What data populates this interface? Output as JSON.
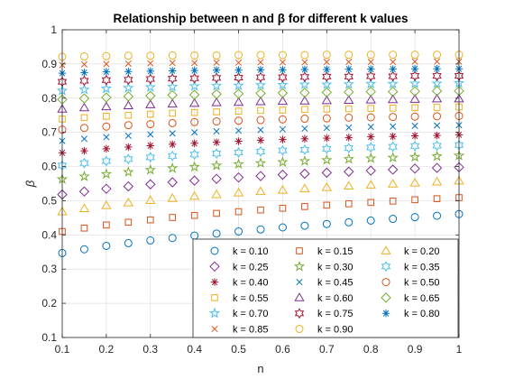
{
  "chart_data": {
    "type": "scatter",
    "title": "Relationship between n and β for different k values",
    "xlabel": "n",
    "ylabel": "β",
    "xlim": [
      0.1,
      1.0
    ],
    "ylim": [
      0.1,
      1.0
    ],
    "xticks": [
      "0.1",
      "0.2",
      "0.3",
      "0.4",
      "0.5",
      "0.6",
      "0.7",
      "0.8",
      "0.9",
      "1"
    ],
    "yticks": [
      "0.1",
      "0.2",
      "0.3",
      "0.4",
      "0.5",
      "0.6",
      "0.7",
      "0.8",
      "0.9",
      "1"
    ],
    "grid": true,
    "legend_location": "bottom-right",
    "legend_columns": 3,
    "x": [
      0.1,
      0.15,
      0.2,
      0.25,
      0.3,
      0.35,
      0.4,
      0.45,
      0.5,
      0.55,
      0.6,
      0.65,
      0.7,
      0.75,
      0.8,
      0.85,
      0.9,
      0.95,
      1.0
    ],
    "series": [
      {
        "name": "k = 0.10",
        "marker": "circle",
        "color": "#0072BD",
        "values": [
          0.347,
          0.358,
          0.368,
          0.376,
          0.384,
          0.391,
          0.398,
          0.404,
          0.41,
          0.416,
          0.422,
          0.427,
          0.432,
          0.437,
          0.442,
          0.447,
          0.452,
          0.456,
          0.461
        ]
      },
      {
        "name": "k = 0.15",
        "marker": "square",
        "color": "#D95319",
        "values": [
          0.41,
          0.42,
          0.429,
          0.437,
          0.444,
          0.451,
          0.457,
          0.463,
          0.468,
          0.473,
          0.478,
          0.483,
          0.487,
          0.491,
          0.495,
          0.499,
          0.503,
          0.506,
          0.509
        ]
      },
      {
        "name": "k = 0.20",
        "marker": "triangle-up",
        "color": "#EDB120",
        "values": [
          0.468,
          0.477,
          0.486,
          0.494,
          0.501,
          0.507,
          0.513,
          0.518,
          0.523,
          0.527,
          0.531,
          0.535,
          0.539,
          0.543,
          0.546,
          0.549,
          0.552,
          0.555,
          0.558
        ]
      },
      {
        "name": "k = 0.25",
        "marker": "diamond",
        "color": "#7E2F8E",
        "values": [
          0.518,
          0.527,
          0.535,
          0.542,
          0.548,
          0.554,
          0.559,
          0.564,
          0.568,
          0.572,
          0.576,
          0.579,
          0.582,
          0.585,
          0.588,
          0.591,
          0.594,
          0.596,
          0.598
        ]
      },
      {
        "name": "k = 0.30",
        "marker": "pentagram",
        "color": "#77AC30",
        "values": [
          0.563,
          0.571,
          0.578,
          0.584,
          0.59,
          0.595,
          0.599,
          0.603,
          0.607,
          0.61,
          0.613,
          0.616,
          0.619,
          0.622,
          0.624,
          0.626,
          0.628,
          0.63,
          0.632
        ]
      },
      {
        "name": "k = 0.35",
        "marker": "hexagram",
        "color": "#4DBEEE",
        "values": [
          0.603,
          0.61,
          0.616,
          0.622,
          0.627,
          0.631,
          0.635,
          0.638,
          0.641,
          0.644,
          0.647,
          0.649,
          0.652,
          0.654,
          0.656,
          0.658,
          0.66,
          0.661,
          0.663
        ]
      },
      {
        "name": "k = 0.40",
        "marker": "asterisk",
        "color": "#A2142F",
        "values": [
          0.64,
          0.646,
          0.652,
          0.657,
          0.661,
          0.665,
          0.668,
          0.671,
          0.674,
          0.677,
          0.679,
          0.681,
          0.683,
          0.685,
          0.687,
          0.688,
          0.69,
          0.691,
          0.693
        ]
      },
      {
        "name": "k = 0.45",
        "marker": "x",
        "color": "#0072BD",
        "values": [
          0.675,
          0.681,
          0.686,
          0.69,
          0.694,
          0.697,
          0.7,
          0.703,
          0.705,
          0.707,
          0.709,
          0.711,
          0.713,
          0.714,
          0.716,
          0.717,
          0.719,
          0.72,
          0.721
        ]
      },
      {
        "name": "k = 0.50",
        "marker": "circle",
        "color": "#D95319",
        "values": [
          0.708,
          0.713,
          0.717,
          0.721,
          0.724,
          0.727,
          0.73,
          0.732,
          0.734,
          0.736,
          0.738,
          0.74,
          0.741,
          0.743,
          0.744,
          0.745,
          0.746,
          0.747,
          0.748
        ]
      },
      {
        "name": "k = 0.55",
        "marker": "square",
        "color": "#EDB120",
        "values": [
          0.739,
          0.743,
          0.747,
          0.75,
          0.753,
          0.756,
          0.758,
          0.76,
          0.762,
          0.764,
          0.765,
          0.767,
          0.768,
          0.769,
          0.77,
          0.771,
          0.772,
          0.773,
          0.774
        ]
      },
      {
        "name": "k = 0.60",
        "marker": "triangle-up",
        "color": "#7E2F8E",
        "values": [
          0.768,
          0.772,
          0.775,
          0.778,
          0.781,
          0.783,
          0.785,
          0.787,
          0.788,
          0.79,
          0.791,
          0.792,
          0.793,
          0.794,
          0.795,
          0.796,
          0.797,
          0.798,
          0.798
        ]
      },
      {
        "name": "k = 0.65",
        "marker": "diamond",
        "color": "#77AC30",
        "values": [
          0.796,
          0.799,
          0.802,
          0.805,
          0.807,
          0.809,
          0.81,
          0.812,
          0.813,
          0.814,
          0.815,
          0.816,
          0.817,
          0.818,
          0.819,
          0.819,
          0.82,
          0.821,
          0.821
        ]
      },
      {
        "name": "k = 0.70",
        "marker": "pentagram",
        "color": "#4DBEEE",
        "values": [
          0.822,
          0.825,
          0.828,
          0.83,
          0.832,
          0.833,
          0.835,
          0.836,
          0.837,
          0.838,
          0.839,
          0.84,
          0.84,
          0.841,
          0.842,
          0.842,
          0.843,
          0.843,
          0.844
        ]
      },
      {
        "name": "k = 0.75",
        "marker": "hexagram",
        "color": "#A2142F",
        "values": [
          0.848,
          0.851,
          0.853,
          0.854,
          0.856,
          0.857,
          0.858,
          0.859,
          0.86,
          0.861,
          0.861,
          0.862,
          0.863,
          0.863,
          0.864,
          0.864,
          0.865,
          0.865,
          0.865
        ]
      },
      {
        "name": "k = 0.80",
        "marker": "asterisk",
        "color": "#0072BD",
        "values": [
          0.873,
          0.875,
          0.877,
          0.878,
          0.879,
          0.88,
          0.881,
          0.882,
          0.882,
          0.883,
          0.883,
          0.884,
          0.884,
          0.885,
          0.885,
          0.885,
          0.886,
          0.886,
          0.886
        ]
      },
      {
        "name": "k = 0.85",
        "marker": "x",
        "color": "#D95319",
        "values": [
          0.897,
          0.899,
          0.9,
          0.901,
          0.902,
          0.903,
          0.903,
          0.904,
          0.904,
          0.905,
          0.905,
          0.905,
          0.906,
          0.906,
          0.906,
          0.906,
          0.907,
          0.907,
          0.907
        ]
      },
      {
        "name": "k = 0.90",
        "marker": "circle",
        "color": "#EDB120",
        "values": [
          0.921,
          0.922,
          0.923,
          0.924,
          0.924,
          0.925,
          0.925,
          0.925,
          0.926,
          0.926,
          0.926,
          0.926,
          0.927,
          0.927,
          0.927,
          0.927,
          0.927,
          0.927,
          0.927
        ]
      }
    ]
  }
}
